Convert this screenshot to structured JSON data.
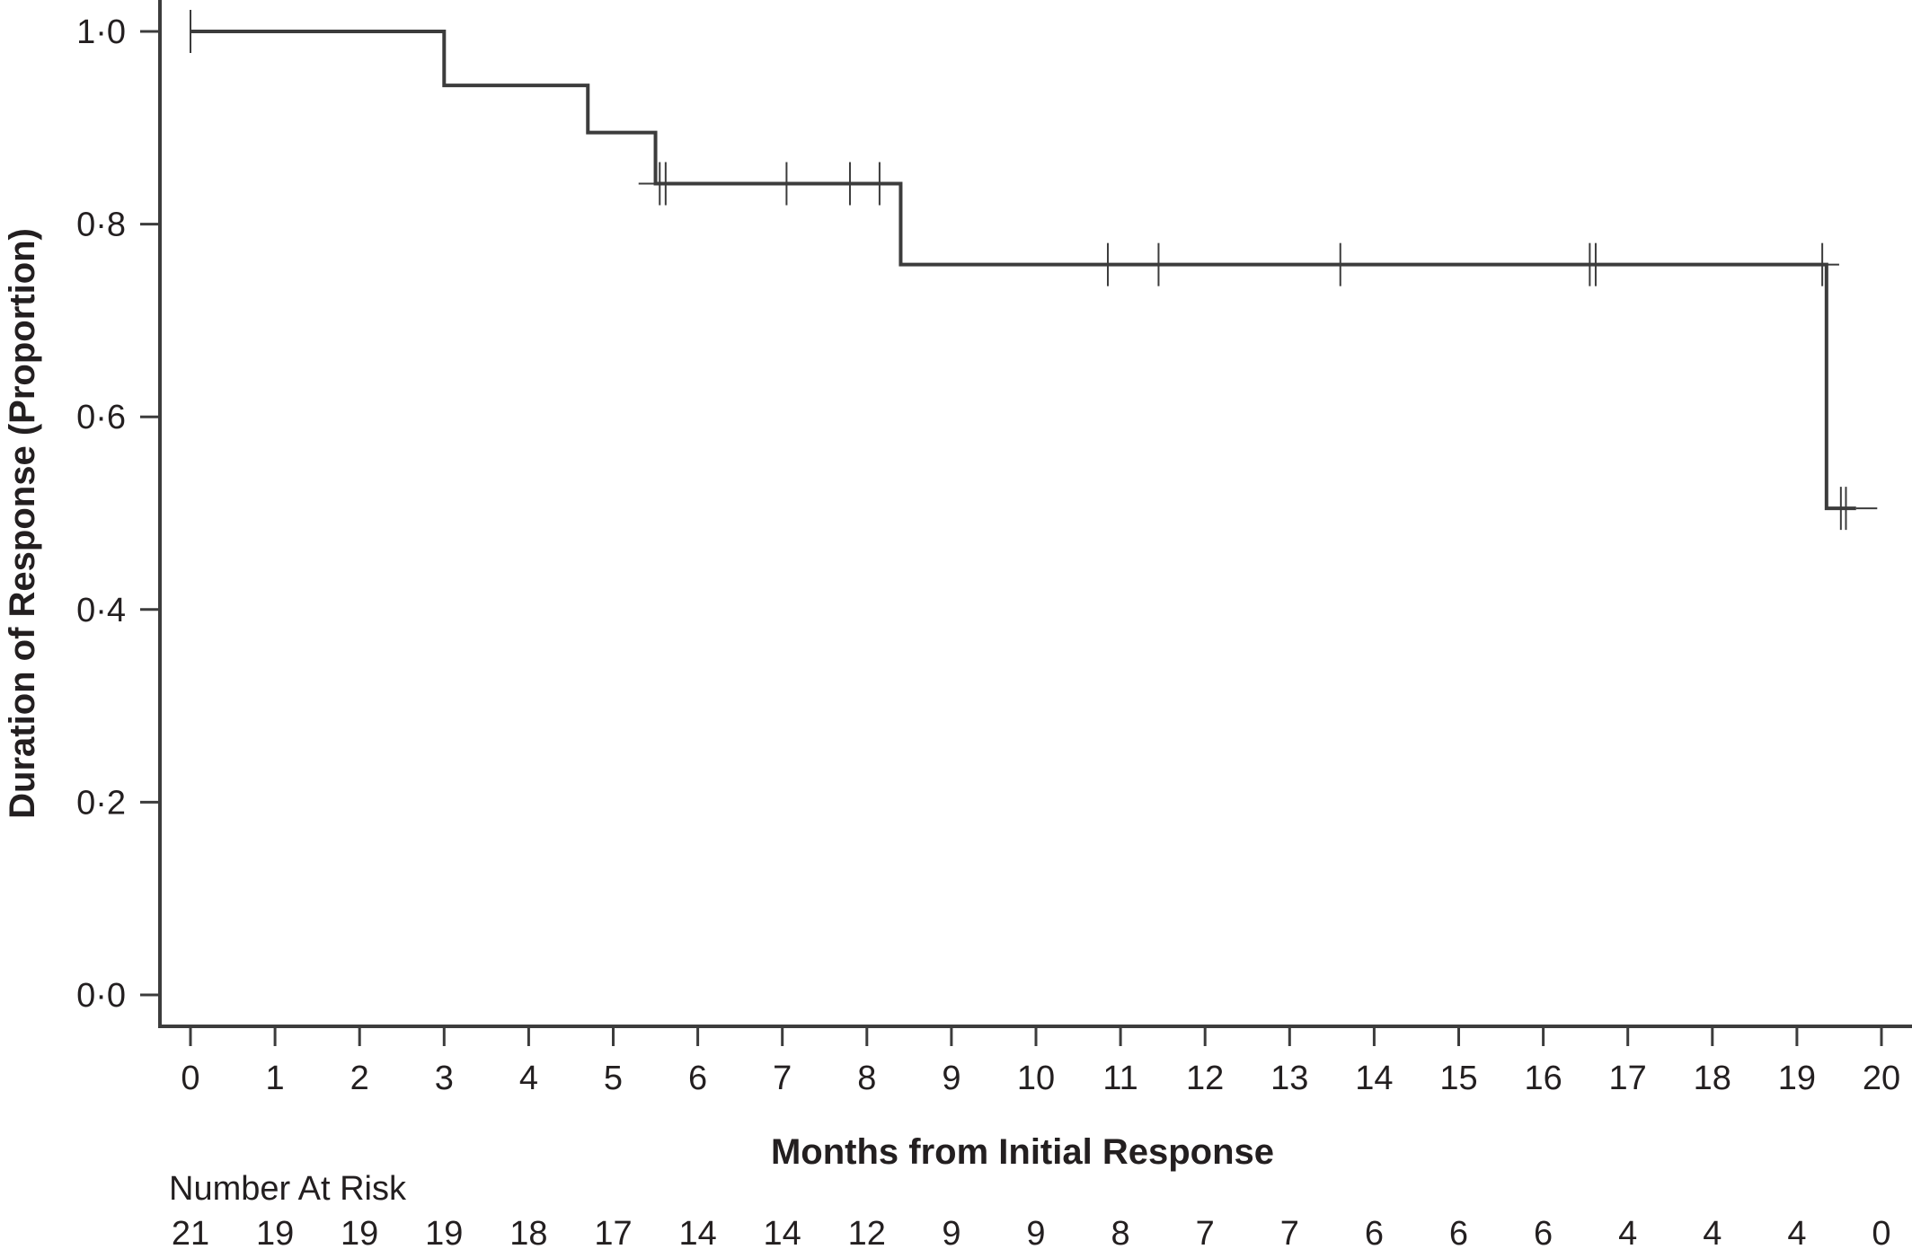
{
  "chart_data": {
    "type": "line",
    "subtype": "kaplan-meier",
    "title": "",
    "xlabel": "Months from Initial Response",
    "ylabel": "Duration of Response (Proportion)",
    "xlim": [
      0,
      20
    ],
    "ylim": [
      0,
      1.0
    ],
    "x_ticks": [
      0,
      1,
      2,
      3,
      4,
      5,
      6,
      7,
      8,
      9,
      10,
      11,
      12,
      13,
      14,
      15,
      16,
      17,
      18,
      19,
      20
    ],
    "x_tick_labels": [
      "0",
      "1",
      "2",
      "3",
      "4",
      "5",
      "6",
      "7",
      "8",
      "9",
      "10",
      "11",
      "12",
      "13",
      "14",
      "15",
      "16",
      "17",
      "18",
      "19",
      "20"
    ],
    "y_ticks": [
      0.0,
      0.2,
      0.4,
      0.6,
      0.8,
      1.0
    ],
    "y_tick_labels": [
      "0·0",
      "0·2",
      "0·4",
      "0·6",
      "0·8",
      "1·0"
    ],
    "grid": false,
    "series": [
      {
        "step_points": [
          {
            "x": 0,
            "y": 1.0
          },
          {
            "x": 3.0,
            "y": 0.944
          },
          {
            "x": 4.7,
            "y": 0.895
          },
          {
            "x": 5.5,
            "y": 0.842
          },
          {
            "x": 8.4,
            "y": 0.758
          },
          {
            "x": 19.35,
            "y": 0.505
          },
          {
            "x": 19.7,
            "y": 0.505
          }
        ],
        "censor_marks": [
          {
            "x": 0,
            "y": 1.0
          },
          {
            "x": 5.55,
            "y": 0.842
          },
          {
            "x": 5.62,
            "y": 0.842
          },
          {
            "x": 7.05,
            "y": 0.842
          },
          {
            "x": 7.8,
            "y": 0.842
          },
          {
            "x": 8.15,
            "y": 0.842
          },
          {
            "x": 10.85,
            "y": 0.758
          },
          {
            "x": 11.45,
            "y": 0.758
          },
          {
            "x": 13.6,
            "y": 0.758
          },
          {
            "x": 16.55,
            "y": 0.758
          },
          {
            "x": 16.62,
            "y": 0.758
          },
          {
            "x": 19.3,
            "y": 0.758
          },
          {
            "x": 19.52,
            "y": 0.505
          },
          {
            "x": 19.58,
            "y": 0.505
          }
        ]
      }
    ],
    "risk_table": {
      "title": "Number At Risk",
      "times": [
        0,
        1,
        2,
        3,
        4,
        5,
        6,
        7,
        8,
        9,
        10,
        11,
        12,
        13,
        14,
        15,
        16,
        17,
        18,
        19,
        20
      ],
      "values": [
        "21",
        "19",
        "19",
        "19",
        "18",
        "17",
        "14",
        "14",
        "12",
        "9",
        "9",
        "8",
        "7",
        "7",
        "6",
        "6",
        "6",
        "4",
        "4",
        "4",
        "0"
      ]
    },
    "colors": {
      "line": "#3c3c3c",
      "axis": "#3c3c3c",
      "text": "#231f20"
    }
  }
}
